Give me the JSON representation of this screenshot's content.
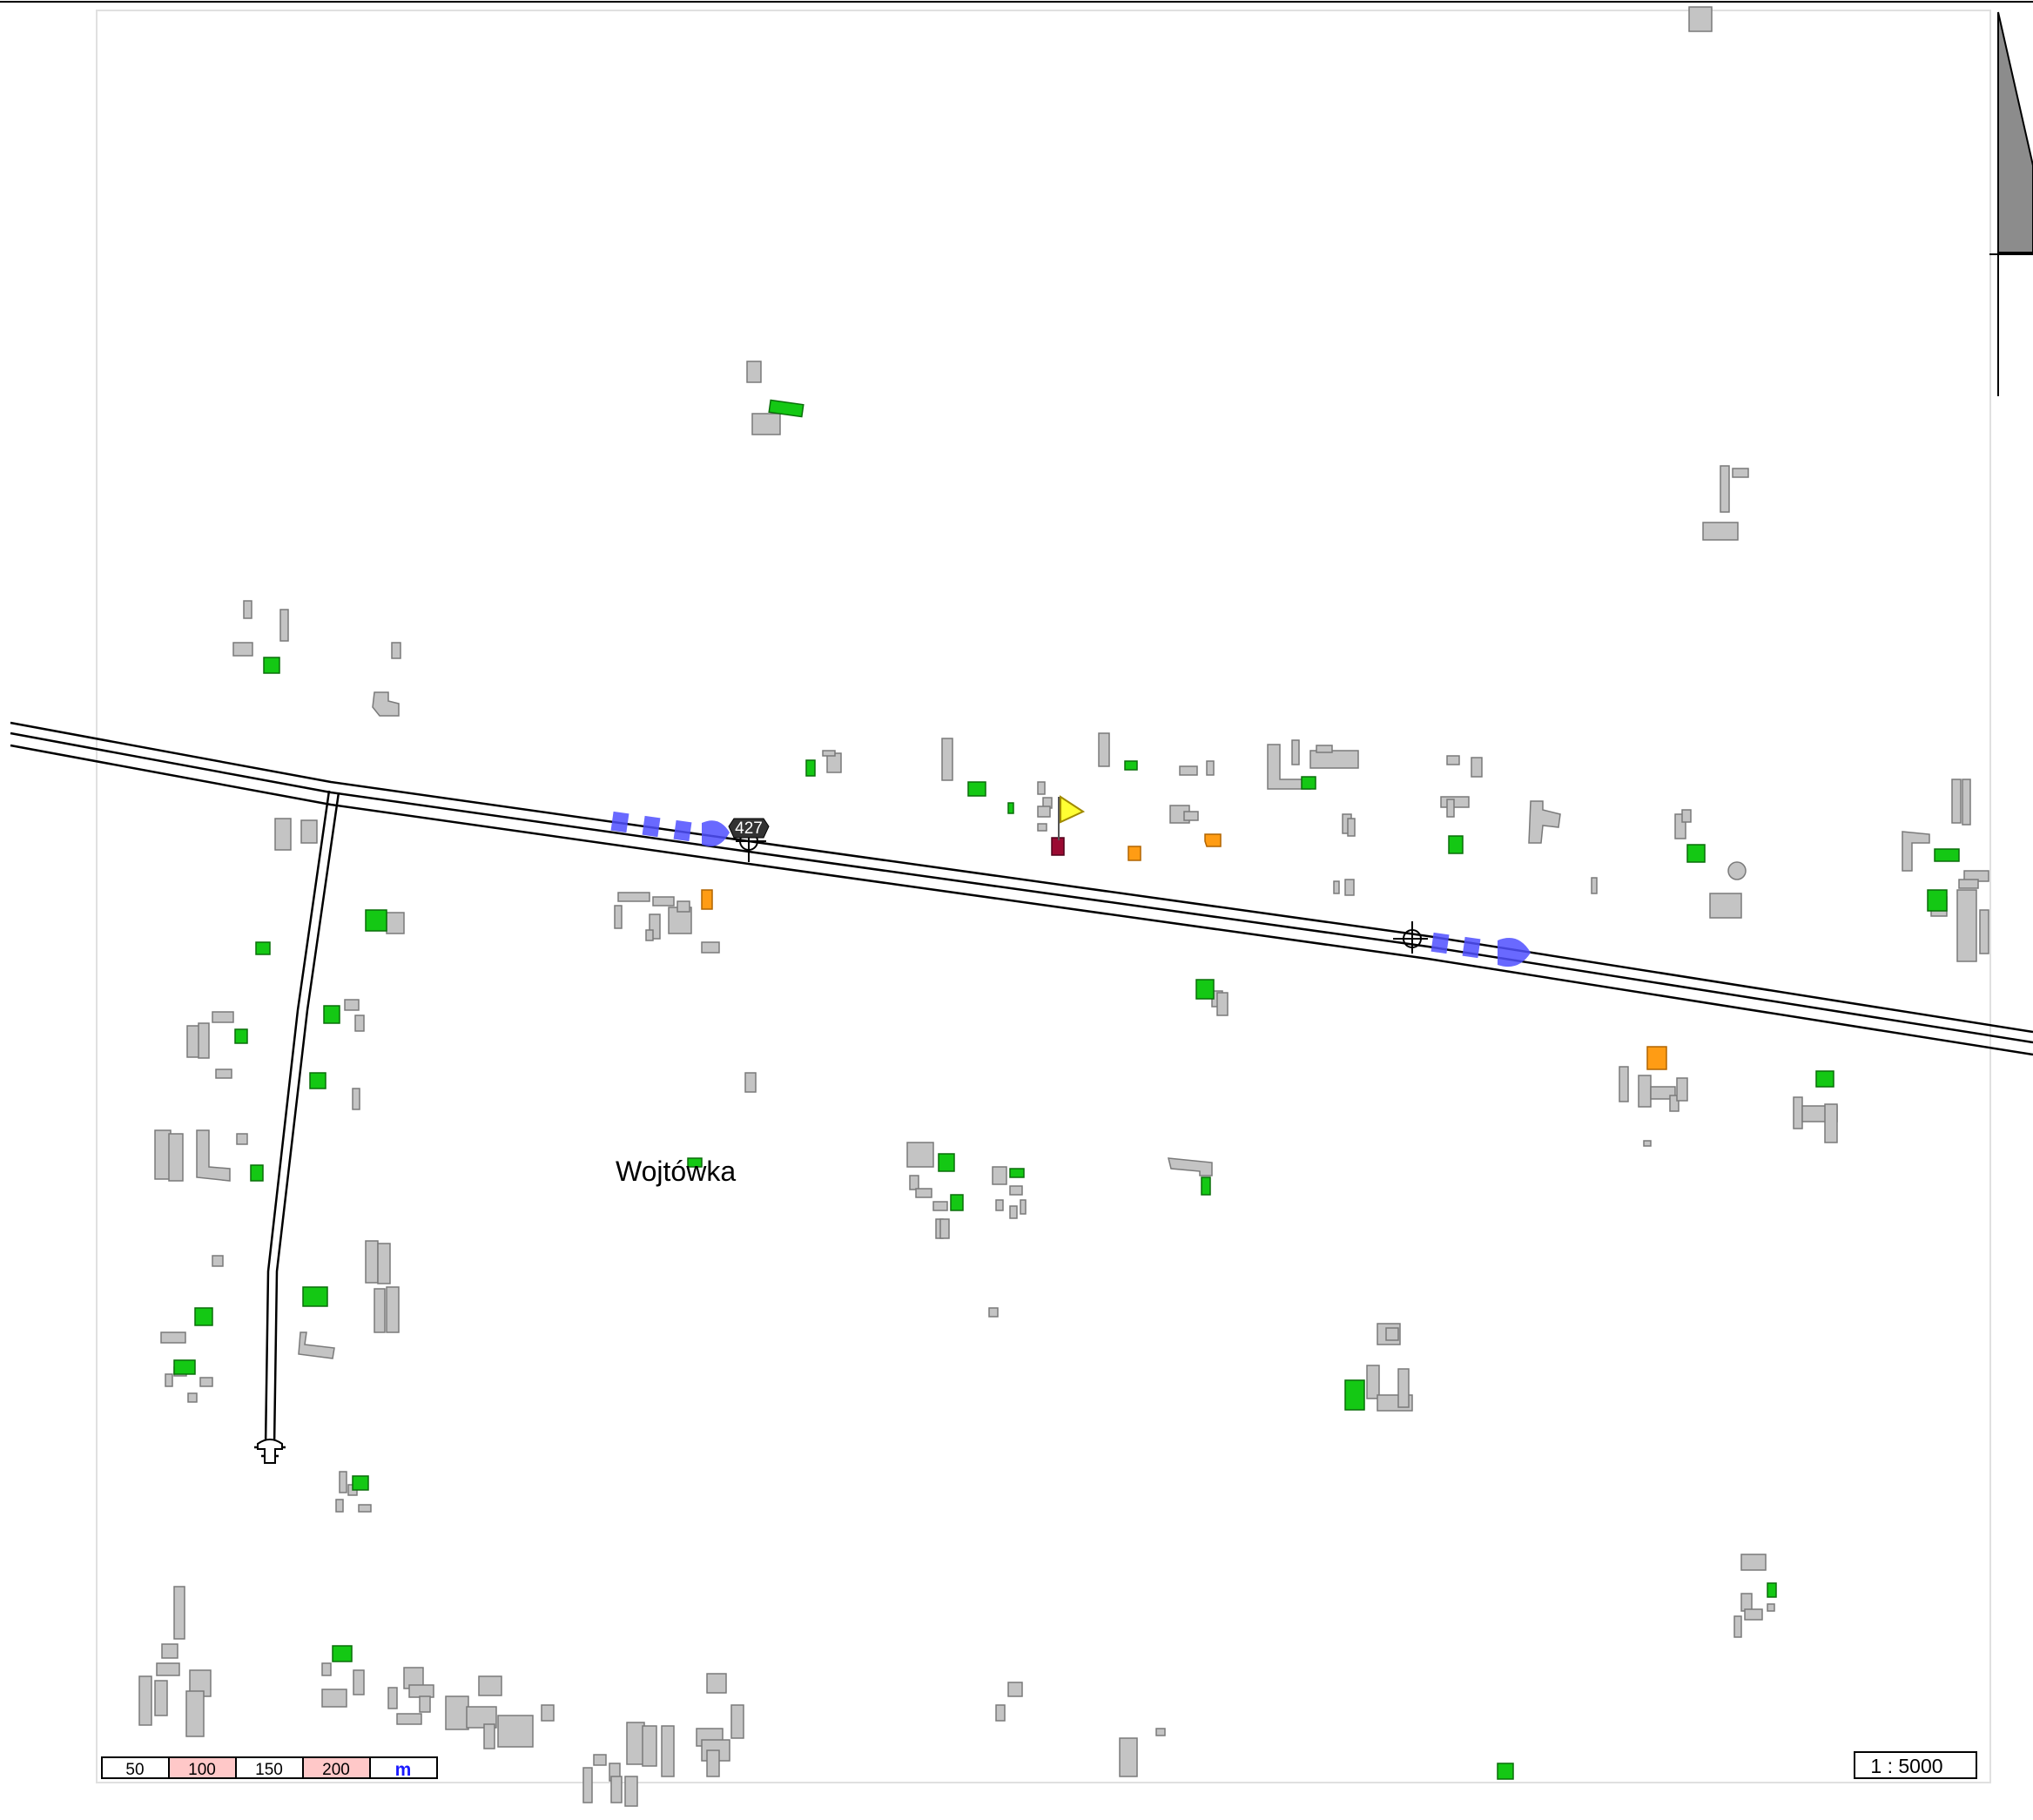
{
  "map": {
    "place_label": "Wojtówka",
    "road_number": "427",
    "scale_ratio": "1 : 5000",
    "scale_bar": {
      "segments": [
        "50",
        "100",
        "150",
        "200"
      ],
      "unit": "m"
    },
    "colors": {
      "building": "#c4c4c4",
      "building_green": "#14c814",
      "building_orange": "#ff9c14",
      "building_dark": "#9a0a32",
      "road_marking": "#5050ff",
      "flag": "#ffff33",
      "scale_highlight": "#ffc8c8"
    },
    "icons": [
      "flag-marker-icon",
      "road-shield-icon",
      "crosshair-icon",
      "north-arrow-icon"
    ]
  }
}
